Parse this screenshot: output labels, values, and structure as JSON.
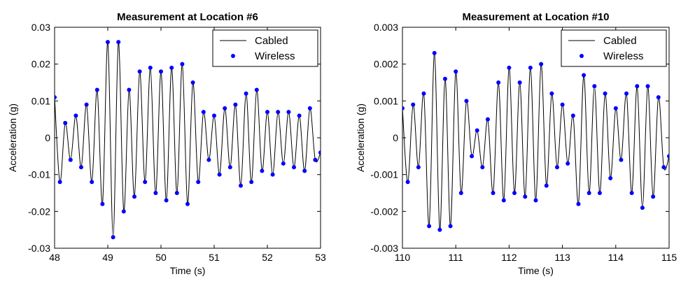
{
  "chart_data": [
    {
      "type": "line",
      "title": "Measurement at Location #6",
      "xlabel": "Time (s)",
      "ylabel": "Acceleration (g)",
      "xlim": [
        48,
        53
      ],
      "ylim": [
        -0.03,
        0.03
      ],
      "xticks": [
        "48",
        "49",
        "50",
        "51",
        "52",
        "53"
      ],
      "yticks": [
        "-0.03",
        "-0.02",
        "-0.01",
        "0",
        "0.01",
        "0.02",
        "0.03"
      ],
      "legend": {
        "position": "top-right",
        "entries": [
          "Cabled",
          "Wireless"
        ]
      },
      "grid": false,
      "series": [
        {
          "name": "Cabled",
          "style": "line",
          "color": "#000000",
          "x": [
            48.0,
            48.1,
            48.2,
            48.3,
            48.4,
            48.5,
            48.6,
            48.7,
            48.8,
            48.9,
            49.0,
            49.1,
            49.2,
            49.3,
            49.4,
            49.5,
            49.6,
            49.7,
            49.8,
            49.9,
            50.0,
            50.1,
            50.2,
            50.3,
            50.4,
            50.5,
            50.6,
            50.7,
            50.8,
            50.9,
            51.0,
            51.1,
            51.2,
            51.3,
            51.4,
            51.5,
            51.6,
            51.7,
            51.8,
            51.9,
            52.0,
            52.1,
            52.2,
            52.3,
            52.4,
            52.5,
            52.6,
            52.7,
            52.8,
            52.9,
            53.0
          ],
          "y": [
            0.011,
            -0.012,
            0.004,
            -0.006,
            0.006,
            -0.008,
            0.009,
            -0.012,
            0.013,
            -0.018,
            0.026,
            -0.027,
            0.026,
            -0.02,
            0.013,
            -0.016,
            0.018,
            -0.012,
            0.019,
            -0.015,
            0.018,
            -0.017,
            0.019,
            -0.015,
            0.02,
            -0.018,
            0.015,
            -0.012,
            0.007,
            -0.006,
            0.006,
            -0.01,
            0.008,
            -0.008,
            0.009,
            -0.013,
            0.012,
            -0.012,
            0.013,
            -0.009,
            0.007,
            -0.01,
            0.007,
            -0.007,
            0.007,
            -0.008,
            0.006,
            -0.009,
            0.008,
            -0.006,
            -0.004
          ]
        },
        {
          "name": "Wireless",
          "style": "markers",
          "color": "#0000ff",
          "x": [
            48.0,
            48.1,
            48.2,
            48.3,
            48.4,
            48.5,
            48.6,
            48.7,
            48.8,
            48.9,
            49.0,
            49.1,
            49.2,
            49.3,
            49.4,
            49.5,
            49.6,
            49.7,
            49.8,
            49.9,
            50.0,
            50.1,
            50.2,
            50.3,
            50.4,
            50.5,
            50.6,
            50.7,
            50.8,
            50.9,
            51.0,
            51.1,
            51.2,
            51.3,
            51.4,
            51.5,
            51.6,
            51.7,
            51.8,
            51.9,
            52.0,
            52.1,
            52.2,
            52.3,
            52.4,
            52.5,
            52.6,
            52.7,
            52.8,
            52.9,
            53.0
          ],
          "y": [
            0.011,
            -0.012,
            0.004,
            -0.006,
            0.006,
            -0.008,
            0.009,
            -0.012,
            0.013,
            -0.018,
            0.026,
            -0.027,
            0.026,
            -0.02,
            0.013,
            -0.016,
            0.018,
            -0.012,
            0.019,
            -0.015,
            0.018,
            -0.017,
            0.019,
            -0.015,
            0.02,
            -0.018,
            0.015,
            -0.012,
            0.007,
            -0.006,
            0.006,
            -0.01,
            0.008,
            -0.008,
            0.009,
            -0.013,
            0.012,
            -0.012,
            0.013,
            -0.009,
            0.007,
            -0.01,
            0.007,
            -0.007,
            0.007,
            -0.008,
            0.006,
            -0.009,
            0.008,
            -0.006,
            -0.004
          ]
        }
      ]
    },
    {
      "type": "line",
      "title": "Measurement at Location #10",
      "xlabel": "Time (s)",
      "ylabel": "Acceleration (g)",
      "xlim": [
        110,
        115
      ],
      "ylim": [
        -0.003,
        0.003
      ],
      "xticks": [
        "110",
        "111",
        "112",
        "113",
        "114",
        "115"
      ],
      "yticks": [
        "-0.003",
        "-0.002",
        "-0.001",
        "0",
        "0.001",
        "0.002",
        "0.003"
      ],
      "legend": {
        "position": "top-right",
        "entries": [
          "Cabled",
          "Wireless"
        ]
      },
      "grid": false,
      "series": [
        {
          "name": "Cabled",
          "style": "line",
          "color": "#000000",
          "x": [
            110.0,
            110.1,
            110.2,
            110.3,
            110.4,
            110.5,
            110.6,
            110.7,
            110.8,
            110.9,
            111.0,
            111.1,
            111.2,
            111.3,
            111.4,
            111.5,
            111.6,
            111.7,
            111.8,
            111.9,
            112.0,
            112.1,
            112.2,
            112.3,
            112.4,
            112.5,
            112.6,
            112.7,
            112.8,
            112.9,
            113.0,
            113.1,
            113.2,
            113.3,
            113.4,
            113.5,
            113.6,
            113.7,
            113.8,
            113.9,
            114.0,
            114.1,
            114.2,
            114.3,
            114.4,
            114.5,
            114.6,
            114.7,
            114.8,
            114.9,
            115.0
          ],
          "y": [
            0.0008,
            -0.0012,
            0.0009,
            -0.0008,
            0.0012,
            -0.0024,
            0.0023,
            -0.0025,
            0.0016,
            -0.0024,
            0.0018,
            -0.0015,
            0.001,
            -0.0005,
            0.0002,
            -0.0008,
            0.0005,
            -0.0015,
            0.0015,
            -0.0017,
            0.0019,
            -0.0015,
            0.0015,
            -0.0016,
            0.0019,
            -0.0017,
            0.002,
            -0.0013,
            0.0012,
            -0.0008,
            0.0009,
            -0.0007,
            0.0006,
            -0.0018,
            0.0017,
            -0.0015,
            0.0014,
            -0.0015,
            0.0012,
            -0.0011,
            0.0008,
            -0.0006,
            0.0012,
            -0.0015,
            0.0014,
            -0.0019,
            0.0014,
            -0.0016,
            0.0011,
            -0.0008,
            -0.0005
          ]
        },
        {
          "name": "Wireless",
          "style": "markers",
          "color": "#0000ff",
          "x": [
            110.0,
            110.1,
            110.2,
            110.3,
            110.4,
            110.5,
            110.6,
            110.7,
            110.8,
            110.9,
            111.0,
            111.1,
            111.2,
            111.3,
            111.4,
            111.5,
            111.6,
            111.7,
            111.8,
            111.9,
            112.0,
            112.1,
            112.2,
            112.3,
            112.4,
            112.5,
            112.6,
            112.7,
            112.8,
            112.9,
            113.0,
            113.1,
            113.2,
            113.3,
            113.4,
            113.5,
            113.6,
            113.7,
            113.8,
            113.9,
            114.0,
            114.1,
            114.2,
            114.3,
            114.4,
            114.5,
            114.6,
            114.7,
            114.8,
            114.9,
            115.0
          ],
          "y": [
            0.0008,
            -0.0012,
            0.0009,
            -0.0008,
            0.0012,
            -0.0024,
            0.0023,
            -0.0025,
            0.0016,
            -0.0024,
            0.0018,
            -0.0015,
            0.001,
            -0.0005,
            0.0002,
            -0.0008,
            0.0005,
            -0.0015,
            0.0015,
            -0.0017,
            0.0019,
            -0.0015,
            0.0015,
            -0.0016,
            0.0019,
            -0.0017,
            0.002,
            -0.0013,
            0.0012,
            -0.0008,
            0.0009,
            -0.0007,
            0.0006,
            -0.0018,
            0.0017,
            -0.0015,
            0.0014,
            -0.0015,
            0.0012,
            -0.0011,
            0.0008,
            -0.0006,
            0.0012,
            -0.0015,
            0.0014,
            -0.0019,
            0.0014,
            -0.0016,
            0.0011,
            -0.0008,
            -0.0005
          ]
        }
      ]
    }
  ]
}
